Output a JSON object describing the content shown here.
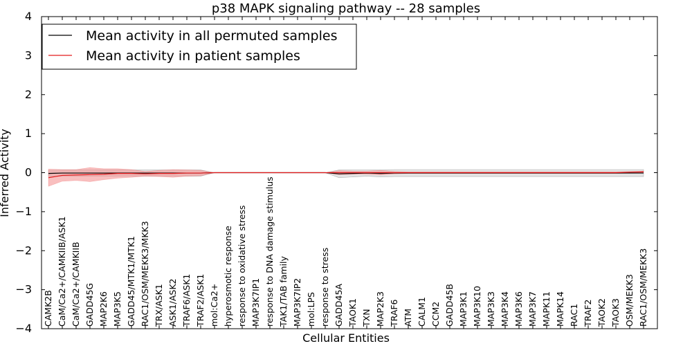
{
  "chart_data": {
    "type": "line",
    "title": "p38 MAPK signaling pathway -- 28 samples",
    "xlabel": "Cellular Entities",
    "ylabel": "Inferred Activity",
    "ylim": [
      -4,
      4
    ],
    "yticks": [
      4,
      3,
      2,
      1,
      0,
      -1,
      -2,
      -3,
      -4
    ],
    "ytick_labels": [
      "4",
      "3",
      "2",
      "1",
      "0",
      "−1",
      "−2",
      "−3",
      "−4"
    ],
    "categories": [
      "CAMK2B",
      "CaM/Ca2+/CAMKIIB/ASK1",
      "CaM/Ca2+/CAMKIIB",
      "GADD45G",
      "MAP2K6",
      "MAP3K5",
      "GADD45/MTK1/MTK1",
      "RAC1/OSM/MEKK3/MKK3",
      "TRX/ASK1",
      "ASK1/ASK2",
      "TRAF6/ASK1",
      "TRAF2/ASK1",
      "mol:Ca2+",
      "hyperosmotic response",
      "response to oxidative stress",
      "MAP3K7IP1",
      "response to DNA damage stimulus",
      "TAK1/TAB family",
      "MAP3K7IP2",
      "mol:LPS",
      "response to stress",
      "GADD45A",
      "TAOK1",
      "TXN",
      "MAP2K3",
      "TRAF6",
      "ATM",
      "CALM1",
      "CCM2",
      "GADD45B",
      "MAP3K1",
      "MAP3K10",
      "MAP3K3",
      "MAP3K4",
      "MAP3K6",
      "MAP3K7",
      "MAPK11",
      "MAPK14",
      "RAC1",
      "TRAF2",
      "TAOK2",
      "TAOK3",
      "OSM/MEKK3",
      "RAC1/OSM/MEKK3"
    ],
    "series": [
      {
        "name": "Mean activity in all permuted samples",
        "color": "#000000",
        "band_color": "#cccccc",
        "values": [
          -0.02,
          -0.01,
          -0.01,
          -0.01,
          -0.01,
          -0.01,
          -0.01,
          -0.01,
          -0.01,
          -0.01,
          -0.01,
          -0.01,
          0.0,
          0.0,
          0.0,
          0.0,
          0.0,
          0.0,
          0.0,
          0.0,
          0.0,
          -0.03,
          -0.02,
          -0.01,
          -0.02,
          -0.01,
          -0.01,
          -0.01,
          -0.01,
          -0.01,
          -0.01,
          -0.01,
          -0.01,
          -0.01,
          -0.01,
          -0.01,
          -0.01,
          -0.01,
          -0.01,
          -0.01,
          -0.01,
          -0.01,
          -0.01,
          -0.01
        ],
        "band": [
          0.08,
          0.08,
          0.08,
          0.08,
          0.08,
          0.08,
          0.08,
          0.08,
          0.08,
          0.08,
          0.08,
          0.08,
          0.0,
          0.0,
          0.0,
          0.0,
          0.0,
          0.0,
          0.0,
          0.0,
          0.0,
          0.1,
          0.09,
          0.08,
          0.09,
          0.09,
          0.09,
          0.09,
          0.09,
          0.09,
          0.09,
          0.09,
          0.09,
          0.09,
          0.09,
          0.09,
          0.09,
          0.09,
          0.09,
          0.09,
          0.09,
          0.09,
          0.09,
          0.09
        ]
      },
      {
        "name": "Mean activity in patient samples",
        "color": "#e41a1c",
        "band_color": "#f59595",
        "values": [
          -0.13,
          -0.07,
          -0.06,
          -0.05,
          -0.04,
          -0.02,
          -0.02,
          -0.03,
          -0.02,
          -0.02,
          -0.01,
          -0.01,
          0.0,
          0.0,
          0.0,
          0.0,
          0.0,
          0.0,
          0.0,
          0.0,
          0.0,
          0.0,
          0.0,
          0.0,
          0.0,
          0.0,
          0.0,
          0.0,
          0.0,
          0.0,
          0.0,
          0.0,
          0.0,
          0.0,
          0.0,
          0.0,
          0.0,
          0.0,
          0.0,
          0.0,
          0.0,
          0.0,
          0.01,
          0.02
        ],
        "band": [
          0.22,
          0.15,
          0.14,
          0.18,
          0.14,
          0.12,
          0.1,
          0.06,
          0.08,
          0.1,
          0.08,
          0.07,
          0.0,
          0.0,
          0.0,
          0.0,
          0.0,
          0.0,
          0.0,
          0.0,
          0.0,
          0.05,
          0.04,
          0.04,
          0.06,
          0.03,
          0.02,
          0.02,
          0.02,
          0.02,
          0.02,
          0.02,
          0.02,
          0.02,
          0.02,
          0.02,
          0.02,
          0.02,
          0.02,
          0.02,
          0.02,
          0.02,
          0.02,
          0.02
        ]
      }
    ],
    "legend_position": "top-left"
  }
}
